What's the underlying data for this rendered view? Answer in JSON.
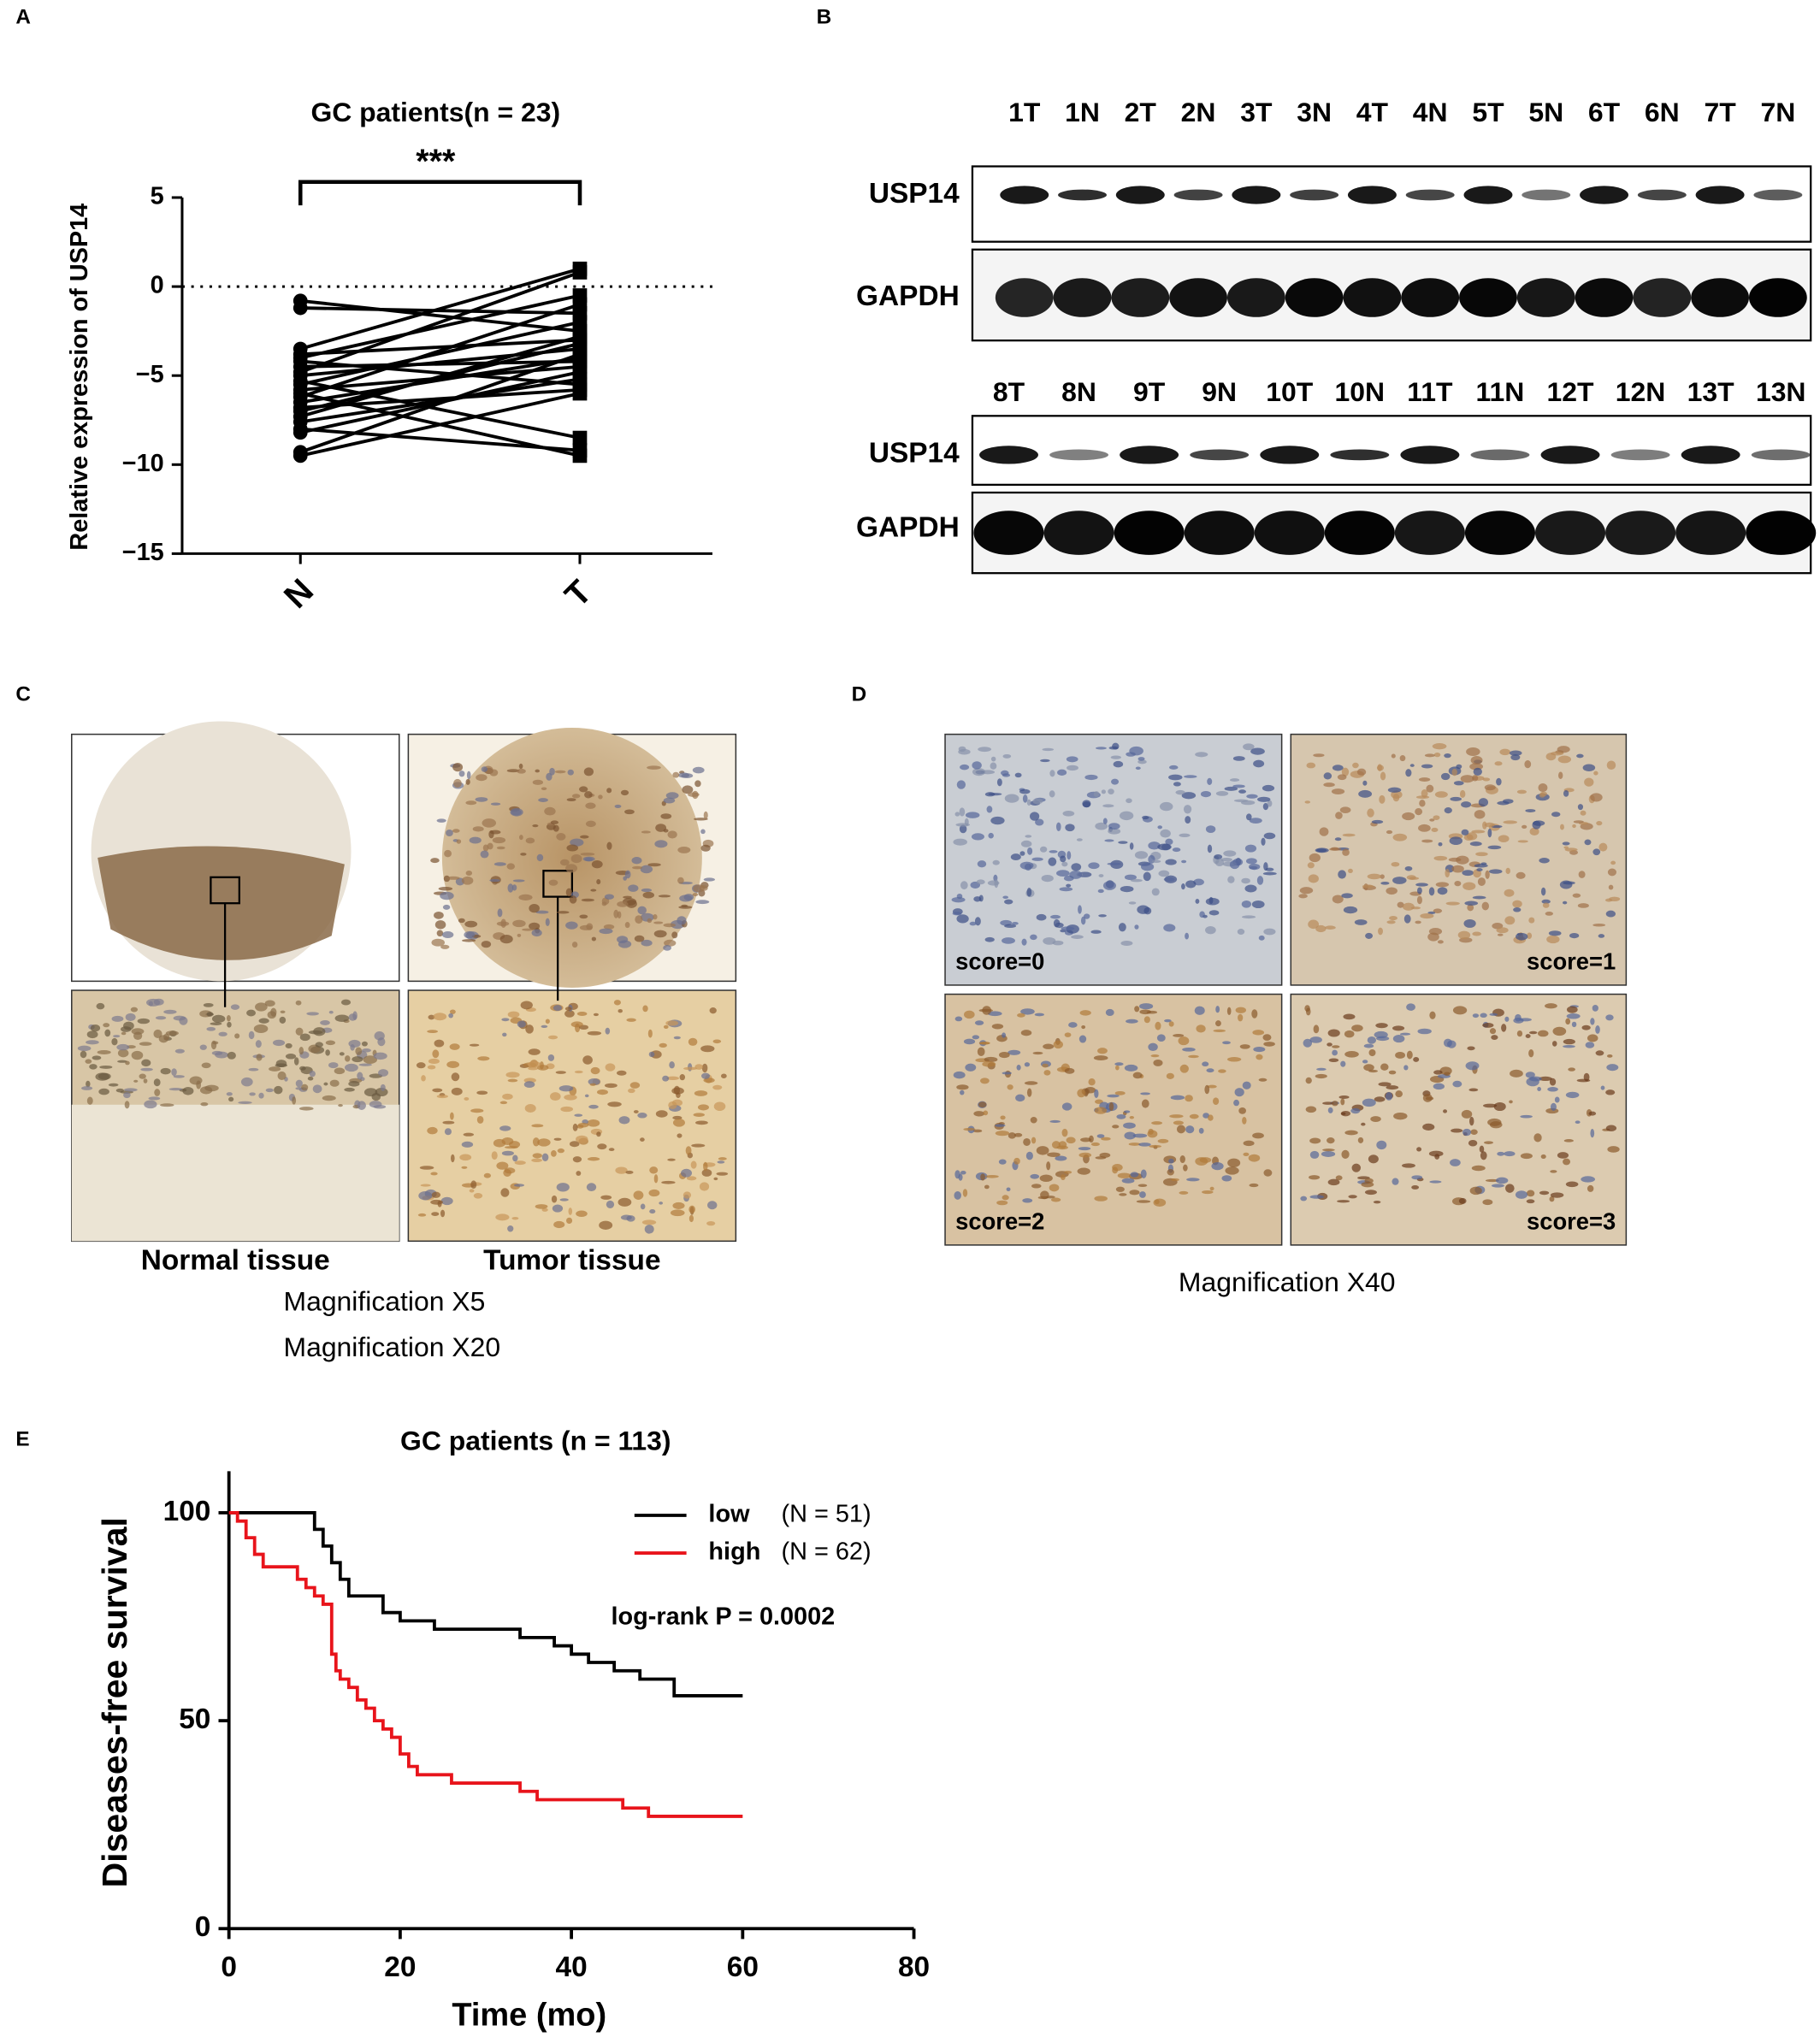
{
  "panel_letters": [
    "A",
    "B",
    "C",
    "D",
    "E"
  ],
  "chart_data": [
    {
      "type": "paired",
      "title": "GC patients(n = 23)",
      "ylabel": "Relative expression of USP14",
      "significance": "***",
      "categories": [
        "N",
        "T"
      ],
      "values": [
        [
          -0.8,
          -1.2,
          -3.5,
          -3.8,
          -4.2,
          -4.5,
          -4.8,
          -5.0,
          -5.3,
          -5.5,
          -5.8,
          -6.0,
          -6.2,
          -6.5,
          -6.8,
          -7.0,
          -7.3,
          -7.6,
          -8.0,
          -8.2,
          -9.3,
          -9.5,
          -4.0
        ],
        [
          -2.5,
          -1.5,
          1.0,
          -3.0,
          -5.5,
          -4.2,
          0.8,
          -3.5,
          -8.5,
          -2.0,
          -4.5,
          -9.5,
          -1.0,
          -4.0,
          -5.8,
          -3.2,
          -2.8,
          -5.2,
          -9.2,
          -4.8,
          -3.8,
          -6.0,
          -0.5
        ]
      ],
      "color": "#000000",
      "reference_line": 0,
      "ylim": [
        -15,
        5
      ],
      "yticks": [
        5,
        0,
        {
          "value": -5,
          "label": "−5"
        },
        {
          "value": -10,
          "label": "−10"
        },
        {
          "value": -15,
          "label": "−15"
        }
      ]
    },
    {
      "type": "step",
      "title": "GC patients (n = 113)",
      "xlabel": "Time (mo)",
      "ylabel": "Diseases-free survival",
      "annotation": "log-rank P = 0.0002",
      "series": [
        {
          "name": "low",
          "n_label": "(N = 51)",
          "color": "#000000",
          "x": [
            0,
            10,
            11,
            12,
            13,
            14,
            18,
            20,
            24,
            34,
            38,
            40,
            42,
            45,
            48,
            52,
            60
          ],
          "values": [
            100,
            96,
            92,
            88,
            84,
            80,
            76,
            74,
            72,
            70,
            68,
            66,
            64,
            62,
            60,
            56,
            56
          ]
        },
        {
          "name": "high",
          "n_label": "(N = 62)",
          "color": "#e8141b",
          "x": [
            0,
            1,
            2,
            3,
            4,
            8,
            9,
            10,
            11,
            12,
            12.5,
            13,
            14,
            15,
            16,
            17,
            18,
            19,
            20,
            21,
            22,
            26,
            34,
            36,
            46,
            49,
            60
          ],
          "values": [
            100,
            98,
            94,
            90,
            87,
            84,
            82,
            80,
            78,
            66,
            62,
            60,
            58,
            55,
            53,
            50,
            48,
            46,
            42,
            39,
            37,
            35,
            33,
            31,
            29,
            27,
            27
          ]
        }
      ],
      "xlim": [
        0,
        80
      ],
      "xticks": [
        0,
        20,
        40,
        60,
        80
      ],
      "ylim": [
        0,
        110
      ],
      "yticks": [
        0,
        50,
        100
      ]
    }
  ],
  "panels": {
    "B": {
      "rows": [
        "USP14",
        "GAPDH"
      ],
      "lanes_top": [
        "1T",
        "1N",
        "2T",
        "2N",
        "3T",
        "3N",
        "4T",
        "4N",
        "5T",
        "5N",
        "6T",
        "6N",
        "7T",
        "7N"
      ],
      "lanes_bottom": [
        "8T",
        "8N",
        "9T",
        "9N",
        "10T",
        "10N",
        "11T",
        "11N",
        "12T",
        "12N",
        "13T",
        "13N"
      ]
    },
    "C": {
      "labels": [
        "Normal tissue",
        "Tumor tissue"
      ],
      "magnifications": [
        "Magnification X5",
        "Magnification X20"
      ]
    },
    "D": {
      "scores": [
        "score=0",
        "score=1",
        "score=2",
        "score=3"
      ],
      "magnification": "Magnification X40"
    }
  }
}
